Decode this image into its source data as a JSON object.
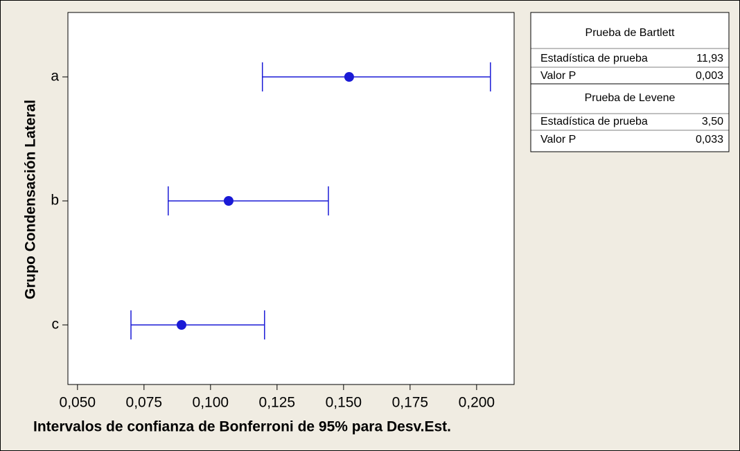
{
  "chart_data": {
    "type": "interval",
    "xlabel": "Intervalos de confianza de Bonferroni de 95% para Desv.Est.",
    "ylabel": "Grupo Condensación Lateral",
    "categories": [
      "a",
      "b",
      "c"
    ],
    "values": [
      0.1521,
      0.1068,
      0.0891
    ],
    "lower": [
      0.1195,
      0.0841,
      0.0701
    ],
    "upper": [
      0.2052,
      0.1443,
      0.1203
    ],
    "color": "#1a1ad6",
    "xlim": [
      0.0464,
      0.2141
    ],
    "xticks": [
      {
        "value": 0.05,
        "label": "0,050"
      },
      {
        "value": 0.075,
        "label": "0,075"
      },
      {
        "value": 0.1,
        "label": "0,100"
      },
      {
        "value": 0.125,
        "label": "0,125"
      },
      {
        "value": 0.15,
        "label": "0,150"
      },
      {
        "value": 0.175,
        "label": "0,175"
      },
      {
        "value": 0.2,
        "label": "0,200"
      }
    ]
  },
  "tests": [
    {
      "title": "Prueba de Bartlett",
      "rows": [
        [
          "Estadística de prueba",
          "11,93"
        ],
        [
          "Valor P",
          "0,003"
        ]
      ]
    },
    {
      "title": "Prueba de Levene",
      "rows": [
        [
          "Estadística de prueba",
          "3,50"
        ],
        [
          "Valor P",
          "0,033"
        ]
      ]
    }
  ]
}
